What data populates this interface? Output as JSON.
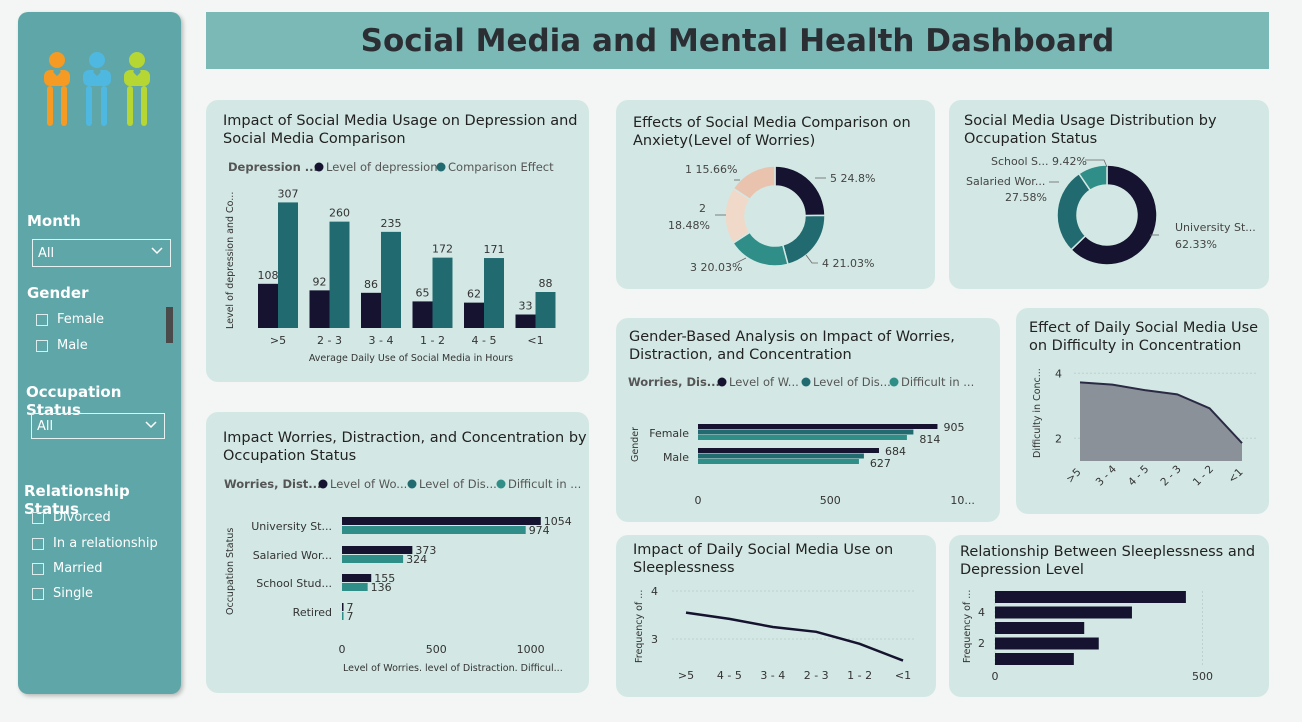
{
  "header": {
    "title": "Social Media and Mental Health Dashboard"
  },
  "logo": {
    "name": "people-logo-icon"
  },
  "filters": {
    "month": {
      "label": "Month",
      "value": "All"
    },
    "gender": {
      "label": "Gender",
      "options": [
        "Female",
        "Male"
      ]
    },
    "occupation": {
      "label": "Occupation Status",
      "value": "All"
    },
    "relationship": {
      "label": "Relationship Status",
      "options": [
        "Divorced",
        "In a relationship",
        "Married",
        "Single"
      ]
    }
  },
  "colors": {
    "dark": "#15132f",
    "teal_dark": "#216b70",
    "teal_mid": "#2f8e88",
    "peach": "#e9c3ad",
    "peach_light": "#f1d9c9",
    "gray_area": "#8a9198"
  },
  "cards": {
    "depression": {
      "title_l1": "Impact of Social Media Usage on Depression and",
      "title_l2": "Social Media Comparison",
      "legend_title": "Depression ...",
      "legend": [
        "Level of depression",
        "Comparison Effect"
      ],
      "ylabel": "Level of depression and Co...",
      "xlabel": "Average Daily Use of Social Media in Hours"
    },
    "anxiety": {
      "title_l1": "Effects of Social Media Comparison on",
      "title_l2": "Anxiety(Level of Worries)"
    },
    "occupation_dist": {
      "title_l1": "Social Media Usage Distribution by",
      "title_l2": "Occupation Status"
    },
    "worries_occ": {
      "title_l1": "Impact Worries, Distraction, and Concentration by",
      "title_l2": "Occupation Status",
      "legend_title": "Worries, Dist...",
      "legend": [
        "Level of Wo...",
        "Level of Dis...",
        "Difficult in ..."
      ],
      "ylabel": "Occupation Status",
      "xlabel": "Level of Worries. level of Distraction. Difficul..."
    },
    "gender": {
      "title_l1": "Gender-Based Analysis on Impact of Worries,",
      "title_l2": "Distraction, and Concentration",
      "legend_title": "Worries, Dis...",
      "legend": [
        "Level of W...",
        "Level of Dis...",
        "Difficult in ..."
      ],
      "ylabel": "Gender"
    },
    "concentration": {
      "title_l1": "Effect of Daily Social Media Use",
      "title_l2": "on Difficulty in Concentration",
      "ylabel": "Difficulty in Conc..."
    },
    "sleep": {
      "title_l1": "Impact of Daily Social Media Use on",
      "title_l2": "Sleeplessness",
      "ylabel": "Frequency of ..."
    },
    "sleep_dep": {
      "title_l1": "Relationship Between Sleeplessness and",
      "title_l2": "Depression Level",
      "ylabel": "Frequency of ..."
    }
  },
  "chart_data": [
    {
      "id": "depression",
      "type": "bar",
      "categories": [
        ">5",
        "2 - 3",
        "3 - 4",
        "1 - 2",
        "4 - 5",
        "<1"
      ],
      "series": [
        {
          "name": "Level of depression",
          "values": [
            108,
            92,
            86,
            65,
            62,
            33
          ]
        },
        {
          "name": "Comparison Effect",
          "values": [
            307,
            260,
            235,
            172,
            171,
            88
          ]
        }
      ],
      "xlabel": "Average Daily Use of Social Media in Hours",
      "ylabel": "Level of depression and Co...",
      "ylim": [
        0,
        330
      ]
    },
    {
      "id": "anxiety",
      "type": "pie",
      "labels": [
        "5",
        "4",
        "3",
        "2",
        "1"
      ],
      "values": [
        24.8,
        21.03,
        20.03,
        18.48,
        15.66
      ],
      "display": [
        "5 24.8%",
        "4 21.03%",
        "3 20.03%",
        "2",
        "18.48%",
        "1 15.66%"
      ]
    },
    {
      "id": "occupation_dist",
      "type": "pie",
      "labels": [
        "University St...",
        "Salaried Wor...",
        "School S..."
      ],
      "values": [
        62.33,
        27.58,
        9.42
      ],
      "display": [
        "University St...",
        "62.33%",
        "Salaried Wor...",
        "27.58%",
        "School S... 9.42%"
      ]
    },
    {
      "id": "worries_occ",
      "type": "bar",
      "orientation": "horizontal",
      "categories": [
        "University St...",
        "Salaried Wor...",
        "School Stud...",
        "Retired"
      ],
      "series": [
        {
          "name": "Level of Wo...",
          "values": [
            1054,
            373,
            155,
            7
          ]
        },
        {
          "name": "Difficult in ...",
          "values": [
            974,
            324,
            136,
            7
          ]
        }
      ],
      "data_labels": [
        "1054",
        "974",
        "373",
        "324",
        "155",
        "136",
        "7",
        "7"
      ],
      "ticks": [
        "0",
        "500",
        "1000"
      ],
      "xlabel": "Level of Worries. level of Distraction. Difficul...",
      "ylabel": "Occupation Status"
    },
    {
      "id": "gender",
      "type": "bar",
      "orientation": "horizontal",
      "categories": [
        "Female",
        "Male"
      ],
      "series": [
        {
          "name": "Level of W...",
          "values": [
            905,
            684
          ]
        },
        {
          "name": "Level of Dis...",
          "values": [
            814,
            627
          ]
        }
      ],
      "data_labels": [
        "905",
        "814",
        "684",
        "627"
      ],
      "ticks": [
        "0",
        "500",
        "10..."
      ],
      "ylabel": "Gender"
    },
    {
      "id": "concentration",
      "type": "area",
      "categories": [
        ">5",
        "3 - 4",
        "4 - 5",
        "2 - 3",
        "1 - 2",
        "<1"
      ],
      "values": [
        3.72,
        3.65,
        3.48,
        3.35,
        2.92,
        1.85
      ],
      "yticks": [
        "4",
        "2"
      ],
      "ylim": [
        1.3,
        4.1
      ],
      "ylabel": "Difficulty in Conc..."
    },
    {
      "id": "sleep",
      "type": "line",
      "categories": [
        ">5",
        "4 - 5",
        "3 - 4",
        "2 - 3",
        "1 - 2",
        "<1"
      ],
      "values": [
        3.55,
        3.42,
        3.25,
        3.15,
        2.9,
        2.55
      ],
      "yticks": [
        "4",
        "3"
      ],
      "ylim": [
        2.5,
        4.0
      ],
      "ylabel": "Frequency of ..."
    },
    {
      "id": "sleep_dep",
      "type": "bar",
      "orientation": "horizontal",
      "categories": [
        "5",
        "4",
        "3",
        "2",
        "1"
      ],
      "values": [
        460,
        330,
        215,
        250,
        190
      ],
      "yticks": [
        "4",
        "2"
      ],
      "xticks": [
        "0",
        "500"
      ],
      "ylabel": "Frequency of ..."
    }
  ]
}
